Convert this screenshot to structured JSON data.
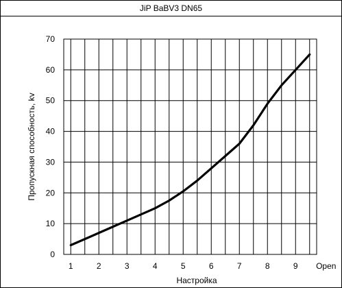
{
  "chart_data": {
    "type": "line",
    "title": "JiP BaBV3 DN65",
    "xlabel": "Настройка",
    "ylabel": "Пропускная способность, kv",
    "x_tick_labels": [
      "1",
      "2",
      "3",
      "4",
      "5",
      "6",
      "7",
      "8",
      "9",
      "Open"
    ],
    "ylim": [
      0,
      70
    ],
    "y_ticks": [
      0,
      10,
      20,
      30,
      40,
      50,
      60,
      70
    ],
    "grid": true,
    "series": [
      {
        "color": "#000000",
        "x": [
          1,
          1.5,
          2,
          2.5,
          3,
          3.5,
          4,
          4.5,
          5,
          5.5,
          6,
          6.5,
          7,
          7.5,
          8,
          8.5,
          9,
          9.5
        ],
        "y": [
          3,
          5,
          7,
          9,
          11,
          13,
          15,
          17.5,
          20.5,
          24,
          28,
          32,
          36,
          42,
          49,
          55,
          60,
          65
        ]
      }
    ]
  }
}
